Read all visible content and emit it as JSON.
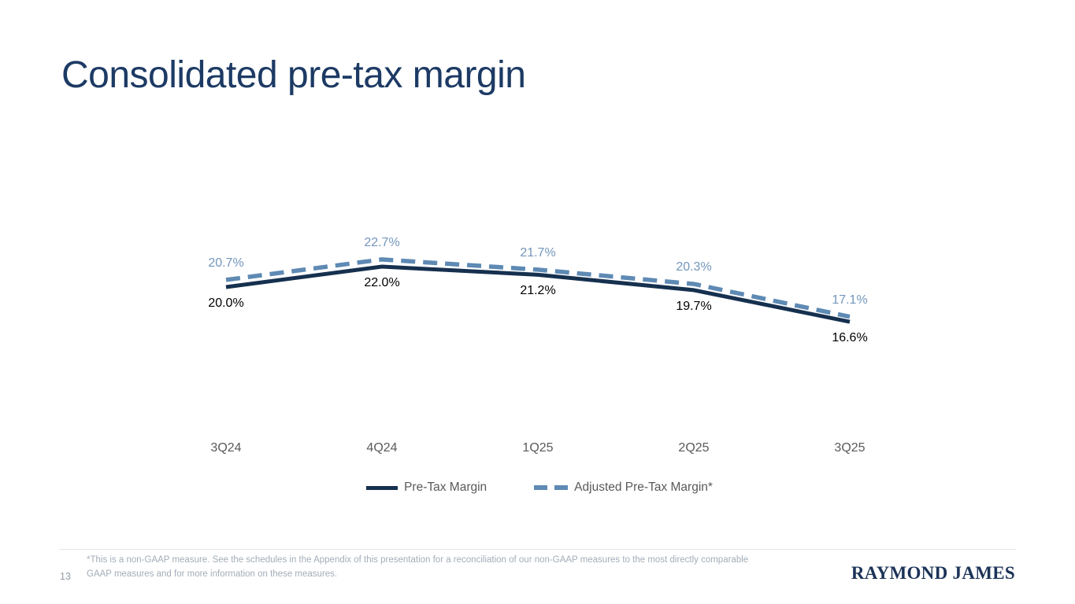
{
  "slide": {
    "title": "Consolidated pre-tax margin",
    "page_number": "13",
    "footnote": "*This is a non-GAAP measure. See the schedules in the Appendix of this presentation for a reconciliation of our non-GAAP measures to the most directly comparable GAAP measures and for more information on these measures.",
    "logo_text": "RAYMOND JAMES"
  },
  "colors": {
    "title": "#1C3A64",
    "pretax_line": "#16304F",
    "adjusted_line": "#5E8AB4",
    "adjusted_label": "#7396BC",
    "pretax_label": "#000000",
    "axis_labels": "#595959",
    "footnote": "#A3ADB9",
    "logo": "#1B3357"
  },
  "chart_data": {
    "type": "line",
    "title": "Consolidated pre-tax margin",
    "categories": [
      "3Q24",
      "4Q24",
      "1Q25",
      "2Q25",
      "3Q25"
    ],
    "series": [
      {
        "name": "Pre-Tax Margin",
        "style": "solid",
        "color": "#16304F",
        "values": [
          20.0,
          22.0,
          21.2,
          19.7,
          16.6
        ]
      },
      {
        "name": "Adjusted Pre-Tax Margin*",
        "style": "dashed",
        "color": "#5E8AB4",
        "values": [
          20.7,
          22.7,
          21.7,
          20.3,
          17.1
        ]
      }
    ],
    "value_format": "one-decimal-percent",
    "data_labels": true,
    "grid": false,
    "axes_hidden": true,
    "legend_position": "bottom",
    "ylim": [
      14,
      26
    ]
  }
}
